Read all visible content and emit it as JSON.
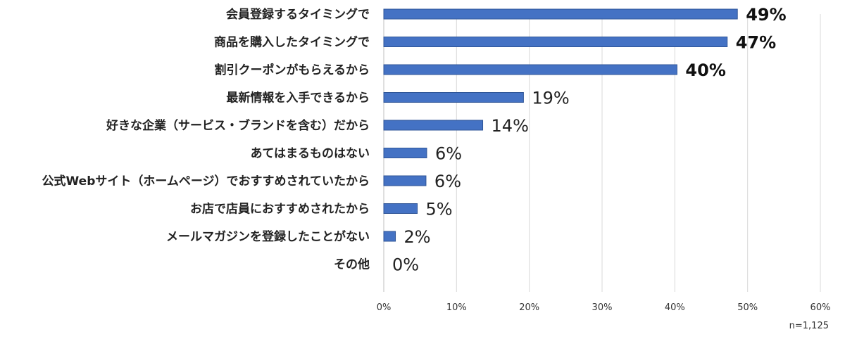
{
  "chart_data": {
    "type": "bar",
    "orientation": "horizontal",
    "categories": [
      "会員登録するタイミングで",
      "商品を購入したタイミングで",
      "割引クーポンがもらえるから",
      "最新情報を入手できるから",
      "好きな企業（サービス・ブランドを含む）だから",
      "あてはまるものはない",
      "公式Webサイト（ホームページ）でおすすめされていたから",
      "お店で店員におすすめされたから",
      "メールマガジンを登録したことがない",
      "その他"
    ],
    "values": [
      48.6,
      47.2,
      40.3,
      19.2,
      13.6,
      5.9,
      5.8,
      4.6,
      1.6,
      0
    ],
    "value_labels": [
      "49%",
      "47%",
      "40%",
      "19%",
      "14%",
      "6%",
      "6%",
      "5%",
      "2%",
      "0%"
    ],
    "highlighted_labels": [
      true,
      true,
      true,
      false,
      false,
      false,
      false,
      false,
      false,
      false
    ],
    "x_ticks": [
      "0%",
      "10%",
      "20%",
      "30%",
      "40%",
      "50%",
      "60%"
    ],
    "xlim": [
      0,
      60
    ],
    "grid": true,
    "bar_color": "#4472c4",
    "bar_edge_color": "#2f5597",
    "note": "n=1,125"
  }
}
